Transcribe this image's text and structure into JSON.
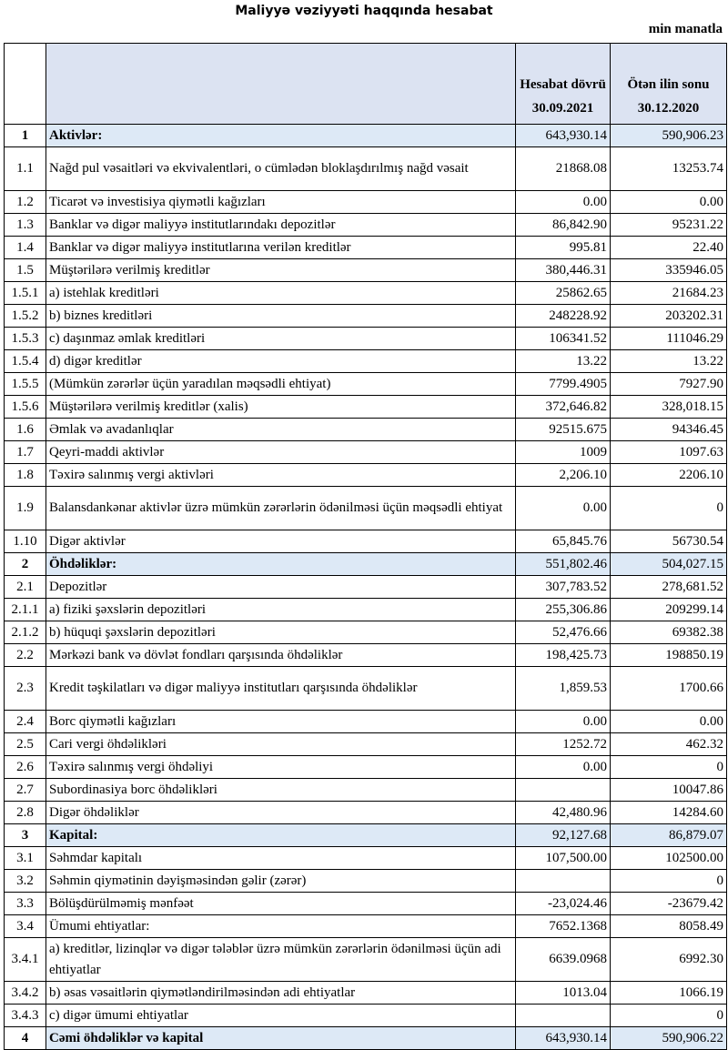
{
  "title": "Maliyyə vəziyyəti haqqında hesabat",
  "unit": "min manatla",
  "header": {
    "col_current": "Hesabat dövrü",
    "col_current_date": "30.09.2021",
    "col_prev": "Ötən ilin sonu",
    "col_prev_date": "30.12.2020"
  },
  "rows": [
    {
      "no": "1",
      "label": "Aktivlər:",
      "cur": "643,930.14",
      "prev": "590,906.23",
      "section": true
    },
    {
      "no": "1.1",
      "label": "Nağd pul vəsaitləri və  ekvivalentləri, o cümlədən bloklaşdırılmış nağd vəsait",
      "cur": "21868.08",
      "prev": "13253.74",
      "double": true
    },
    {
      "no": "1.2",
      "label": "Ticarət və investisiya qiymətli kağızları",
      "cur": "0.00",
      "prev": "0.00"
    },
    {
      "no": "1.3",
      "label": "Banklar və digər maliyyə institutlarındakı depozitlər",
      "cur": "86,842.90",
      "prev": "95231.22"
    },
    {
      "no": "1.4",
      "label": "Banklar və digər maliyyə institutlarına verilən kreditlər",
      "cur": "995.81",
      "prev": "22.40"
    },
    {
      "no": "1.5",
      "label": "Müştərilərə verilmiş kreditlər",
      "cur": "380,446.31",
      "prev": "335946.05"
    },
    {
      "no": "1.5.1",
      "label": "a) istehlak kreditləri",
      "cur": "25862.65",
      "prev": "21684.23"
    },
    {
      "no": "1.5.2",
      "label": "b) biznes kreditləri",
      "cur": "248228.92",
      "prev": "203202.31"
    },
    {
      "no": "1.5.3",
      "label": "c) daşınmaz əmlak kreditləri",
      "cur": "106341.52",
      "prev": "111046.29"
    },
    {
      "no": "1.5.4",
      "label": "d) digər kreditlər",
      "cur": "13.22",
      "prev": "13.22"
    },
    {
      "no": "1.5.5",
      "label": "(Mümkün zərərlər üçün yaradılan məqsədli ehtiyat)",
      "cur": "7799.4905",
      "prev": "7927.90"
    },
    {
      "no": "1.5.6",
      "label": "Müştərilərə verilmiş kreditlər (xalis)",
      "cur": "372,646.82",
      "prev": "328,018.15"
    },
    {
      "no": "1.6",
      "label": "Əmlak və avadanlıqlar",
      "cur": "92515.675",
      "prev": "94346.45"
    },
    {
      "no": "1.7",
      "label": "Qeyri-maddi aktivlər",
      "cur": "1009",
      "prev": "1097.63"
    },
    {
      "no": "1.8",
      "label": "Təxirə salınmış vergi aktivləri",
      "cur": "2,206.10",
      "prev": "2206.10"
    },
    {
      "no": "1.9",
      "label": "Balansdankənar aktivlər üzrə mümkün zərərlərin ödənilməsi üçün məqsədli ehtiyat",
      "cur": "0.00",
      "prev": "0",
      "double": true
    },
    {
      "no": "1.10",
      "label": "Digər aktivlər",
      "cur": "65,845.76",
      "prev": "56730.54"
    },
    {
      "no": "2",
      "label": "Öhdəliklər:",
      "cur": "551,802.46",
      "prev": "504,027.15",
      "section": true
    },
    {
      "no": "2.1",
      "label": "Depozitlər",
      "cur": "307,783.52",
      "prev": "278,681.52"
    },
    {
      "no": "2.1.1",
      "label": "a) fiziki şəxslərin depozitləri",
      "cur": "255,306.86",
      "prev": "209299.14"
    },
    {
      "no": "2.1.2",
      "label": "b) hüquqi şəxslərin depozitləri",
      "cur": "52,476.66",
      "prev": "69382.38"
    },
    {
      "no": "2.2",
      "label": "Mərkəzi bank və dövlət fondları qarşısında öhdəliklər",
      "cur": "198,425.73",
      "prev": "198850.19"
    },
    {
      "no": "2.3",
      "label": "Kredit təşkilatları və digər maliyyə institutları qarşısında öhdəliklər",
      "cur": "1,859.53",
      "prev": "1700.66",
      "double": true
    },
    {
      "no": "2.4",
      "label": "Borc qiymətli kağızları",
      "cur": "0.00",
      "prev": "0.00"
    },
    {
      "no": "2.5",
      "label": "Cari vergi öhdəlikləri",
      "cur": "1252.72",
      "prev": "462.32"
    },
    {
      "no": "2.6",
      "label": "Təxirə salınmış vergi öhdəliyi",
      "cur": "0.00",
      "prev": "0"
    },
    {
      "no": "2.7",
      "label": "Subordinasiya borc öhdəlikləri",
      "cur": "",
      "prev": "10047.86"
    },
    {
      "no": "2.8",
      "label": "Digər öhdəliklər",
      "cur": "42,480.96",
      "prev": "14284.60"
    },
    {
      "no": "3",
      "label": "Kapital:",
      "cur": "92,127.68",
      "prev": "86,879.07",
      "section": true
    },
    {
      "no": "3.1",
      "label": "Səhmdar kapitalı",
      "cur": "107,500.00",
      "prev": "102500.00"
    },
    {
      "no": "3.2",
      "label": "Səhmin qiymətinin dəyişməsindən gəlir (zərər)",
      "cur": "",
      "prev": "0"
    },
    {
      "no": "3.3",
      "label": "Bölüşdürülməmiş mənfəət",
      "cur": "-23,024.46",
      "prev": "-23679.42"
    },
    {
      "no": "3.4",
      "label": "Ümumi ehtiyatlar:",
      "cur": "7652.1368",
      "prev": "8058.49"
    },
    {
      "no": "3.4.1",
      "label": "a) kreditlər, lizinqlər və digər tələblər üzrə mümkün zərərlərin ödənilməsi üçün adi ehtiyatlar",
      "cur": "6639.0968",
      "prev": "6992.30",
      "double": true
    },
    {
      "no": "3.4.2",
      "label": "b) əsas vəsaitlərin qiymətləndirilməsindən adi ehtiyatlar",
      "cur": "1013.04",
      "prev": "1066.19"
    },
    {
      "no": "3.4.3",
      "label": "c) digər ümumi ehtiyatlar",
      "cur": "",
      "prev": "0"
    },
    {
      "no": "4",
      "label": "Cəmi öhdəliklər və kapital",
      "cur": "643,930.14",
      "prev": "590,906.22",
      "section": true
    }
  ]
}
